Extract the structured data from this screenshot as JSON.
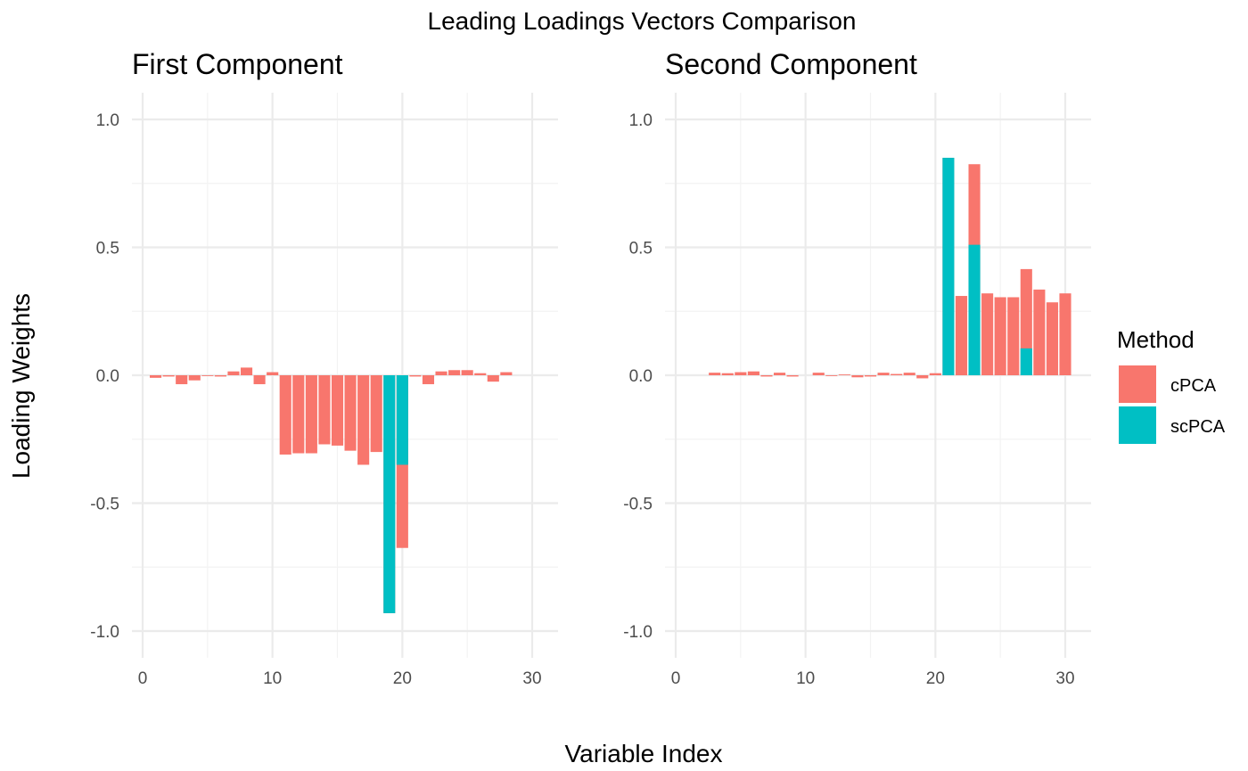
{
  "chart_data": {
    "type": "bar",
    "title": "Leading Loadings Vectors Comparison",
    "xlabel": "Variable Index",
    "ylabel": "Loading Weights",
    "xlim": [
      -0.5,
      31.5
    ],
    "ylim": [
      -1.1,
      1.1
    ],
    "x_ticks": [
      0,
      10,
      20,
      30
    ],
    "y_ticks": [
      -1.0,
      -0.5,
      0.0,
      0.5,
      1.0
    ],
    "y_tick_labels": [
      "-1.0",
      "-0.5",
      "0.0",
      "0.5",
      "1.0"
    ],
    "grid": true,
    "legend": {
      "title": "Method",
      "position": "right"
    },
    "series_colors": {
      "cPCA": "#F8766D",
      "scPCA": "#00BFC4"
    },
    "panels": [
      {
        "title": "First Component",
        "series": [
          {
            "name": "cPCA",
            "x": [
              1,
              2,
              3,
              4,
              5,
              6,
              7,
              8,
              9,
              10,
              11,
              12,
              13,
              14,
              15,
              16,
              17,
              18,
              19,
              20,
              21,
              22,
              23,
              24,
              25,
              26,
              27,
              28
            ],
            "values": [
              -0.01,
              -0.005,
              -0.035,
              -0.02,
              -0.003,
              -0.005,
              0.015,
              0.03,
              -0.035,
              0.012,
              -0.31,
              -0.305,
              -0.305,
              -0.27,
              -0.275,
              -0.295,
              -0.35,
              -0.3,
              -0.93,
              -0.675,
              -0.005,
              -0.035,
              0.015,
              0.02,
              0.02,
              0.008,
              -0.025,
              0.012
            ]
          },
          {
            "name": "scPCA",
            "x": [
              19,
              20
            ],
            "values": [
              -0.93,
              -0.35
            ]
          }
        ]
      },
      {
        "title": "Second Component",
        "series": [
          {
            "name": "cPCA",
            "x": [
              3,
              4,
              5,
              6,
              7,
              8,
              9,
              11,
              12,
              13,
              14,
              15,
              16,
              17,
              18,
              19,
              20,
              21,
              22,
              23,
              24,
              25,
              26,
              27,
              28,
              29,
              30
            ],
            "values": [
              0.01,
              0.008,
              0.012,
              0.015,
              -0.005,
              0.01,
              -0.005,
              0.01,
              -0.003,
              0.003,
              -0.008,
              -0.005,
              0.01,
              0.005,
              0.01,
              -0.012,
              0.008,
              0.85,
              0.31,
              0.825,
              0.32,
              0.305,
              0.305,
              0.415,
              0.335,
              0.285,
              0.32
            ]
          },
          {
            "name": "scPCA",
            "x": [
              21,
              23,
              27
            ],
            "values": [
              0.85,
              0.51,
              0.105
            ]
          }
        ]
      }
    ]
  }
}
